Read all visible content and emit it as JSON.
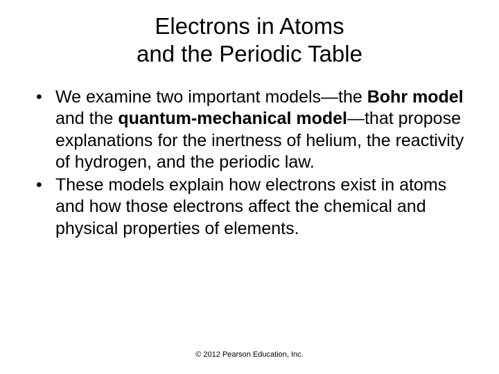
{
  "title_line1": "Electrons in Atoms",
  "title_line2": "and the Periodic Table",
  "bullets": [
    {
      "marker": "•",
      "segments": [
        {
          "text": "We examine two important models—the ",
          "bold": false
        },
        {
          "text": "Bohr model",
          "bold": true
        },
        {
          "text": " and the ",
          "bold": false
        },
        {
          "text": "quantum-mechanical model",
          "bold": true
        },
        {
          "text": "—that propose explanations for the inertness of helium, the reactivity of hydrogen, and the periodic law.",
          "bold": false
        }
      ]
    },
    {
      "marker": "•",
      "segments": [
        {
          "text": "These models explain how electrons exist in atoms and how those electrons affect the chemical and physical properties of elements.",
          "bold": false
        }
      ]
    }
  ],
  "footer": "© 2012 Pearson Education, Inc.",
  "colors": {
    "background": "#ffffff",
    "text": "#000000"
  },
  "typography": {
    "title_fontsize": 33,
    "body_fontsize": 25,
    "footer_fontsize": 11,
    "font_family": "Arial"
  }
}
